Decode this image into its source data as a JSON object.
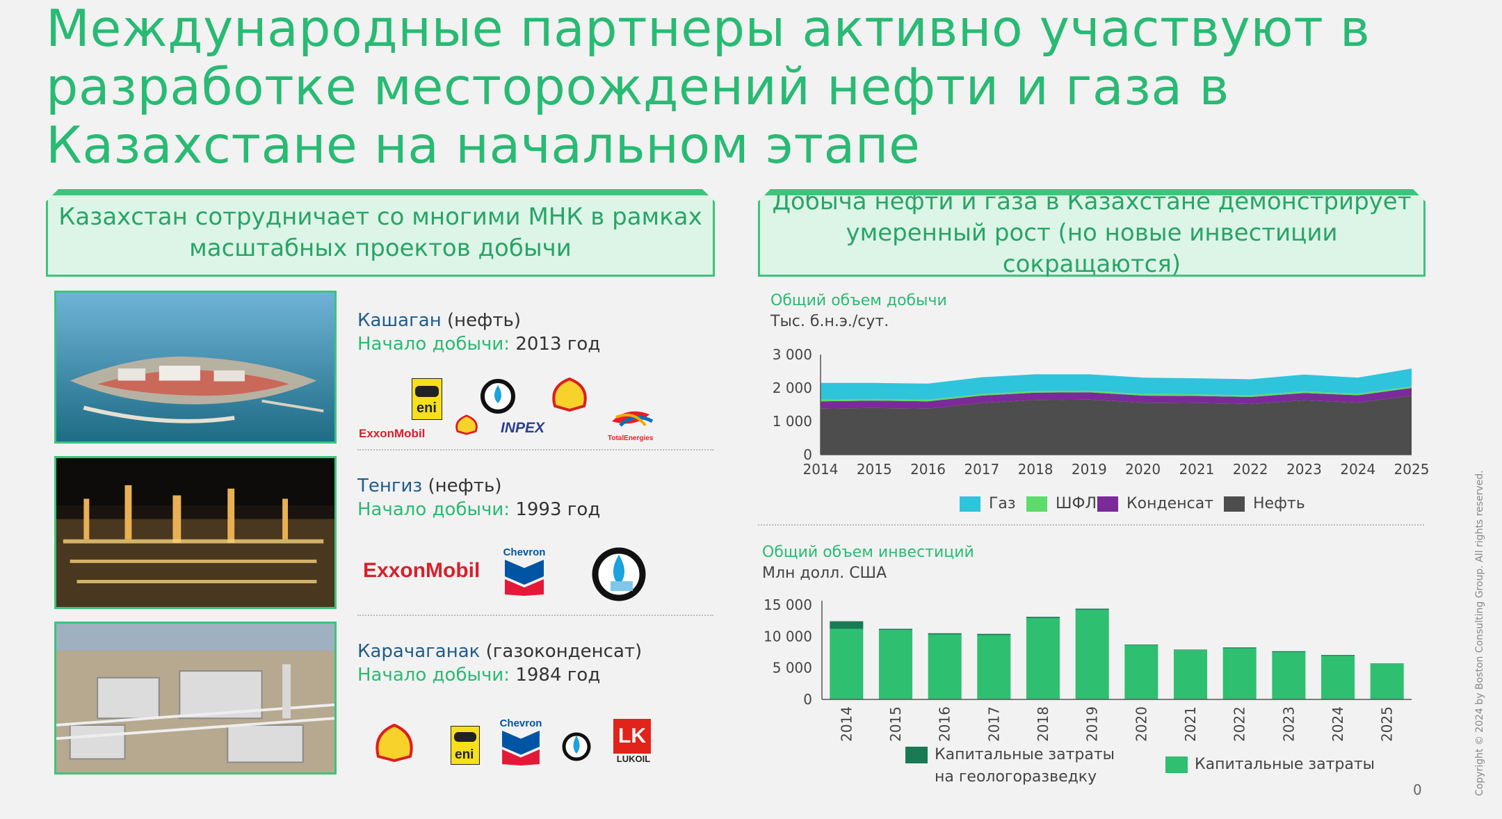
{
  "title": {
    "line1": "Международные партнеры активно участвуют в",
    "line2": "разработке месторождений нефти и газа в",
    "line3": "Казахстане на начальном этапе"
  },
  "left_header": {
    "line1": "Казахстан сотрудничает со многими МНК в рамках",
    "line2": "масштабных проектов добычи"
  },
  "right_header": {
    "line1": "Добыча нефти и газа в Казахстане демонстрирует",
    "line2": "умеренный рост (но новые инвестиции сокращаются)"
  },
  "projects": [
    {
      "name": "Кашаган",
      "type": "(нефть)",
      "start_label": "Начало добычи:",
      "start_value": "2013 год",
      "logos": [
        "ExxonMobil",
        "eni",
        "shell-icon",
        "INPEX",
        "shell-icon",
        "TotalEnergies"
      ]
    },
    {
      "name": "Тенгиз",
      "type": "(нефть)",
      "start_label": "Начало добычи:",
      "start_value": "1993 год",
      "logos": [
        "ExxonMobil",
        "Chevron",
        "kazmunaygas-icon"
      ]
    },
    {
      "name": "Карачаганак",
      "type": "(газоконденсат)",
      "start_label": "Начало добычи:",
      "start_value": "1984 год",
      "logos": [
        "shell-icon",
        "eni",
        "Chevron",
        "kazmunaygas-icon",
        "LUKOIL"
      ]
    }
  ],
  "logo_text": {
    "exxon": "ExxonMobil",
    "eni": "eni",
    "inpex": "INPEX",
    "total": "TotalEnergies",
    "chevron": "Chevron",
    "lukoil_mark": "LK",
    "lukoil": "LUKOIL"
  },
  "colors": {
    "accent": "#29ba74",
    "gas": "#2ec4dc",
    "ngl": "#5ddc6c",
    "condensate": "#7b2a9a",
    "oil": "#4d4d4d",
    "capex_exploration": "#197a56",
    "capex": "#2fbf71"
  },
  "chart_data": [
    {
      "type": "area",
      "title": "Общий объем добычи",
      "ylabel": "Тыс. б.н.э./сут.",
      "x": [
        "2014",
        "2015",
        "2016",
        "2017",
        "2018",
        "2019",
        "2020",
        "2021",
        "2022",
        "2023",
        "2024",
        "2025"
      ],
      "yticks": [
        "0",
        "1 000",
        "2 000",
        "3 000"
      ],
      "ylim": [
        0,
        3000
      ],
      "stacked": true,
      "series": [
        {
          "name": "Нефть",
          "color": "#4d4d4d",
          "values": [
            1380,
            1400,
            1380,
            1550,
            1640,
            1650,
            1560,
            1550,
            1520,
            1630,
            1560,
            1770
          ]
        },
        {
          "name": "Конденсат",
          "color": "#7b2a9a",
          "values": [
            220,
            220,
            220,
            220,
            220,
            220,
            210,
            210,
            210,
            220,
            220,
            230
          ]
        },
        {
          "name": "ШФЛУ",
          "color": "#5ddc6c",
          "values": [
            50,
            50,
            50,
            50,
            50,
            50,
            50,
            50,
            50,
            50,
            50,
            50
          ]
        },
        {
          "name": "Газ",
          "color": "#2ec4dc",
          "values": [
            500,
            480,
            480,
            500,
            500,
            490,
            490,
            480,
            480,
            500,
            480,
            530
          ]
        }
      ],
      "legend": [
        "Газ",
        "ШФЛУ",
        "Конденсат",
        "Нефть"
      ]
    },
    {
      "type": "bar",
      "title": "Общий объем инвестиций",
      "ylabel": "Млн долл. США",
      "categories": [
        "2014",
        "2015",
        "2016",
        "2017",
        "2018",
        "2019",
        "2020",
        "2021",
        "2022",
        "2023",
        "2024",
        "2025"
      ],
      "yticks": [
        "0",
        "5 000",
        "10 000",
        "15 000"
      ],
      "ylim": [
        0,
        15000
      ],
      "stacked": true,
      "series": [
        {
          "name": "Капитальные затраты",
          "color": "#2fbf71",
          "values": [
            11200,
            11000,
            10300,
            10200,
            12900,
            14200,
            8600,
            7800,
            8100,
            7500,
            6900,
            5600
          ]
        },
        {
          "name": "Капитальные затраты на геологоразведку",
          "color": "#197a56",
          "values": [
            1200,
            200,
            200,
            200,
            200,
            200,
            100,
            100,
            150,
            150,
            150,
            100
          ]
        }
      ],
      "legend": {
        "exploration_line1": "Капитальные затраты",
        "exploration_line2": "на геологоразведку",
        "capex": "Капитальные затраты"
      }
    }
  ],
  "footer": {
    "copyright": "Copyright © 2024 by Boston Consulting Group. All rights reserved.",
    "page": "0"
  }
}
